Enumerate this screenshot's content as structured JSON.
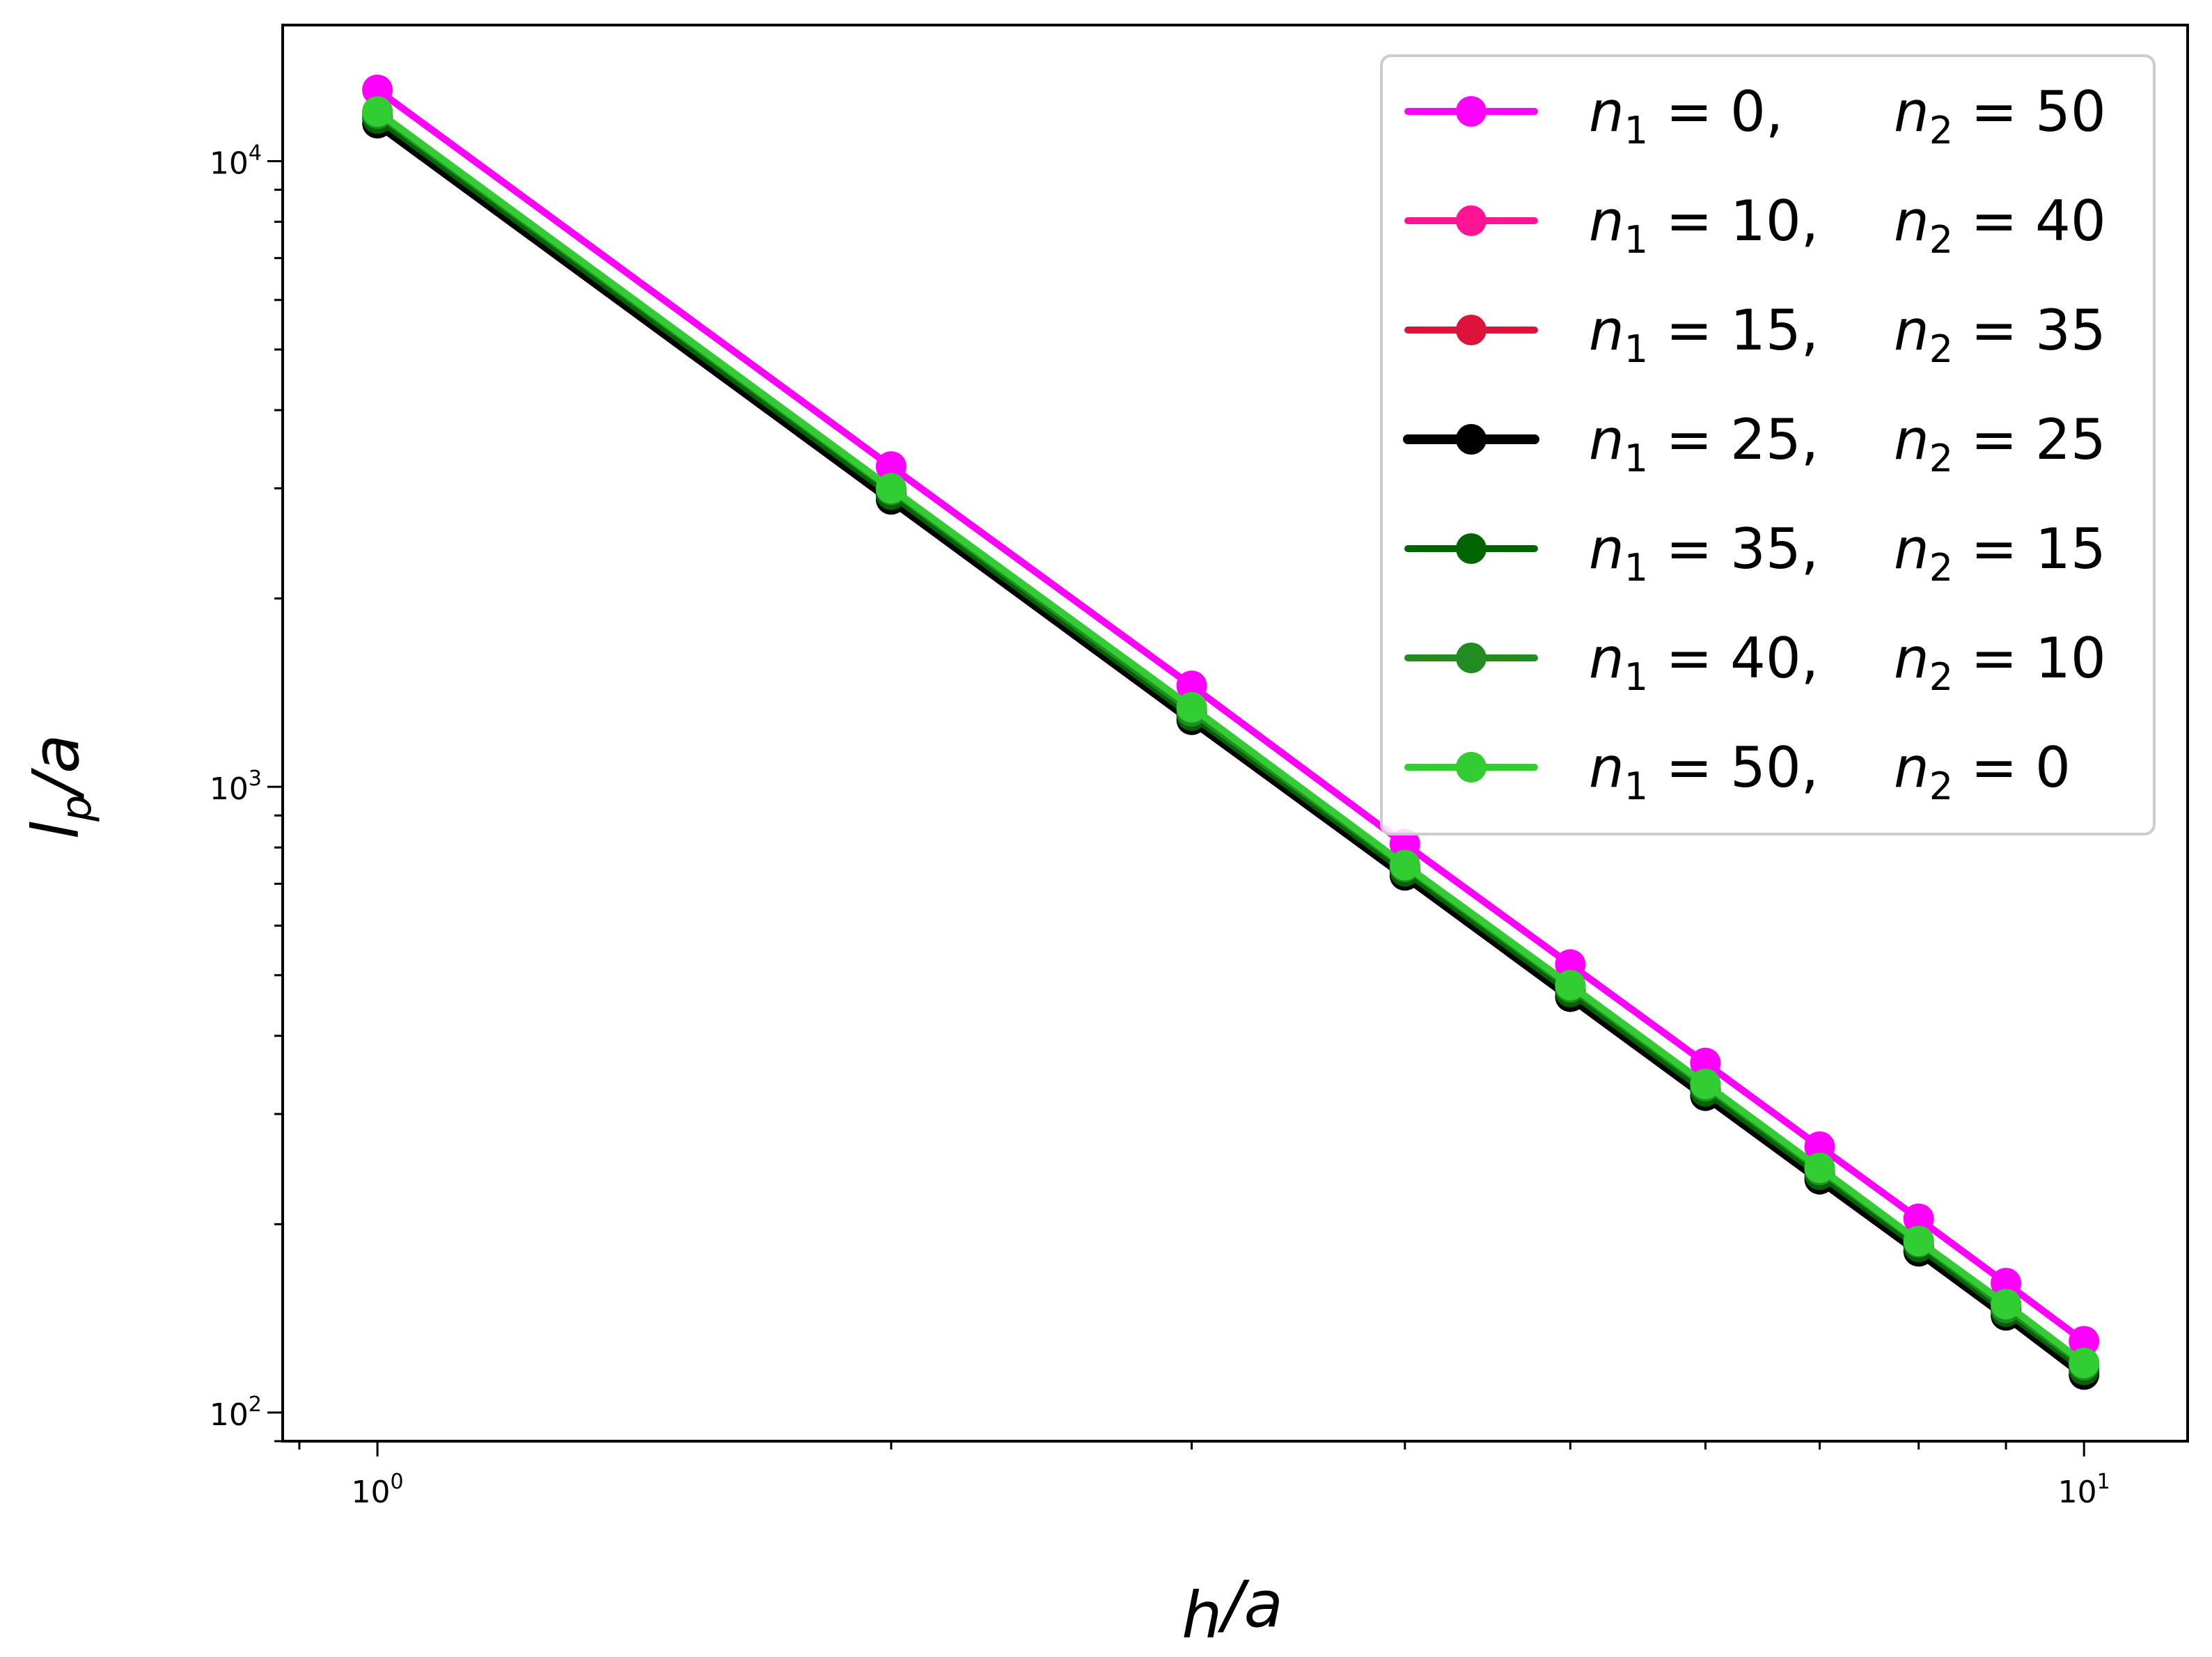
{
  "chart_data": {
    "type": "line",
    "xscale": "log",
    "yscale": "log",
    "xlim": [
      0.88,
      11.5
    ],
    "ylim": [
      90,
      16500
    ],
    "xlabel": {
      "var": "h",
      "sub": "",
      "suffix": "/a"
    },
    "ylabel": {
      "var": "l",
      "sub": "p",
      "suffix": "/a"
    },
    "x_ticks": [
      {
        "base": "10",
        "exp": "0",
        "value": 1
      },
      {
        "base": "10",
        "exp": "1",
        "value": 10
      }
    ],
    "y_ticks": [
      {
        "base": "10",
        "exp": "2",
        "value": 100
      },
      {
        "base": "10",
        "exp": "3",
        "value": 1000
      },
      {
        "base": "10",
        "exp": "4",
        "value": 10000
      }
    ],
    "grid": false,
    "legend_position": "top-right",
    "x": [
      1,
      2,
      3,
      4,
      5,
      6,
      7,
      8,
      9,
      10
    ],
    "series": [
      {
        "n1": "0",
        "n2": "50",
        "color": "#ff00ff",
        "values": [
          13000,
          3250,
          1450,
          810,
          520,
          362,
          266,
          204,
          161,
          130
        ]
      },
      {
        "n1": "10",
        "n2": "40",
        "color": "#ff1493",
        "values": [
          12000,
          3000,
          1340,
          750,
          482,
          335,
          246,
          188,
          149,
          120
        ]
      },
      {
        "n1": "15",
        "n2": "35",
        "color": "#dc143c",
        "values": [
          11800,
          2950,
          1310,
          740,
          474,
          329,
          242,
          185,
          146,
          118
        ]
      },
      {
        "n1": "25",
        "n2": "25",
        "color": "#000000",
        "values": [
          11500,
          2880,
          1280,
          722,
          462,
          321,
          236,
          181,
          143,
          115
        ]
      },
      {
        "n1": "35",
        "n2": "15",
        "color": "#006400",
        "values": [
          11700,
          2930,
          1300,
          733,
          470,
          326,
          240,
          184,
          145,
          117
        ]
      },
      {
        "n1": "40",
        "n2": "10",
        "color": "#228b22",
        "values": [
          11900,
          2980,
          1320,
          745,
          478,
          332,
          244,
          187,
          147,
          119
        ]
      },
      {
        "n1": "50",
        "n2": "0",
        "color": "#32cd32",
        "values": [
          12000,
          3000,
          1340,
          750,
          482,
          335,
          246,
          188,
          149,
          120
        ]
      }
    ]
  }
}
